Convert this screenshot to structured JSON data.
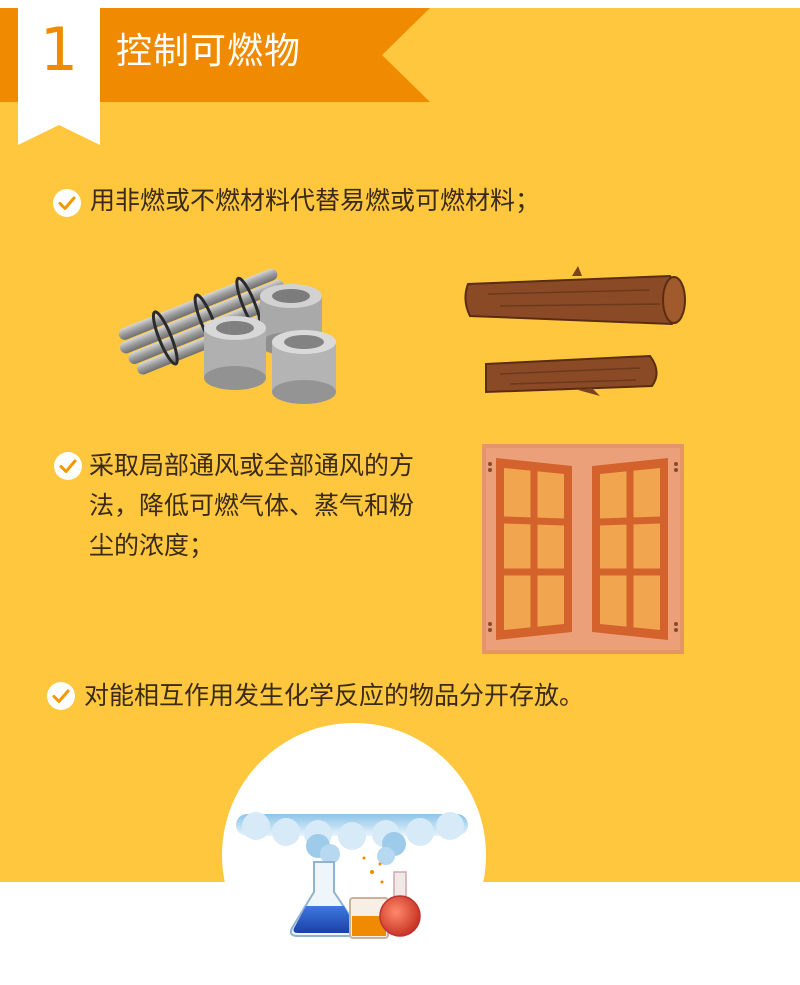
{
  "section": {
    "number": "1",
    "title": "控制可燃物"
  },
  "items": [
    {
      "text": "用非燃或不燃材料代替易燃或可燃材料；"
    },
    {
      "text": "采取局部通风或全部通风的方法，降低可燃气体、蒸气和粉尘的浓度；"
    },
    {
      "text": "对能相互作用发生化学反应的物品分开存放。"
    }
  ],
  "colors": {
    "background": "#FEC73E",
    "banner": "#F08A00",
    "text": "#3a2a17",
    "check": "#F39800"
  },
  "icons": [
    "check-icon",
    "metal-pipes",
    "wood-logs",
    "window",
    "lab-flasks"
  ]
}
